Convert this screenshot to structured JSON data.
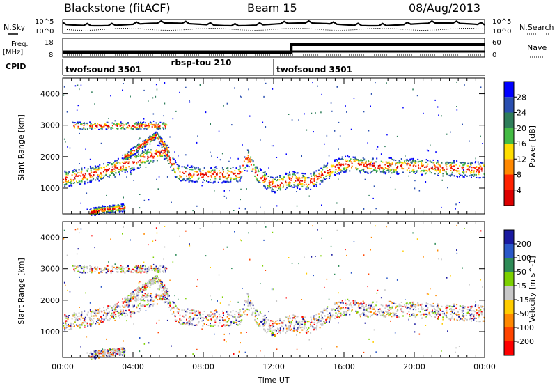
{
  "header": {
    "station": "Blackstone (fitACF)",
    "beam": "Beam 15",
    "date": "08/Aug/2013"
  },
  "panel_labels": {
    "nsky": "N.Sky",
    "nsearch": "N.Search",
    "freq_line1": "Freq.",
    "freq_line2": "[MHz]",
    "nave": "Nave",
    "cpid": "CPID"
  },
  "noise_axis": {
    "left_top": "10^5",
    "left_bottom": "10^0",
    "right_top": "10^5",
    "right_bottom": "10^0"
  },
  "freq_axis": {
    "left_top": "18",
    "left_bottom": "8",
    "right_top": "60",
    "right_bottom": "0"
  },
  "cpid_segments": [
    {
      "label": "twofsound 3501",
      "start_hour": 0,
      "end_hour": 6
    },
    {
      "label": "rbsp-tou 210",
      "start_hour": 6,
      "end_hour": 12
    },
    {
      "label": "twofsound 3501",
      "start_hour": 12,
      "end_hour": 24
    }
  ],
  "nave_step_hour": 13,
  "chart_data": [
    {
      "type": "heatmap",
      "panel": "power",
      "ylabel": "Slant Range [km]",
      "ylim": [
        180,
        4500
      ],
      "y_ticks": [
        1000,
        2000,
        3000,
        4000
      ],
      "xlim": [
        0,
        24
      ],
      "colorbar_label": "Power [dB]",
      "colorbar_ticks": [
        "4",
        "8",
        "12",
        "16",
        "20",
        "24",
        "28"
      ],
      "colorbar_colors": [
        "#0000ff",
        "#2a4fb0",
        "#2e7d5a",
        "#44bb44",
        "#ffdd00",
        "#ff8800",
        "#ff2200",
        "#dd0000"
      ],
      "scatter_bands": [
        {
          "description": "main echo band",
          "points": [
            [
              0,
              1300
            ],
            [
              2,
              1500
            ],
            [
              4,
              1850
            ],
            [
              5,
              2050
            ],
            [
              5.8,
              2200
            ],
            [
              6.5,
              1500
            ],
            [
              8,
              1450
            ],
            [
              10,
              1450
            ],
            [
              10.5,
              2000
            ],
            [
              11,
              1450
            ],
            [
              12,
              1100
            ],
            [
              13,
              1300
            ],
            [
              14,
              1200
            ],
            [
              15,
              1550
            ],
            [
              16,
              1800
            ],
            [
              17,
              1750
            ],
            [
              20,
              1700
            ],
            [
              24,
              1600
            ]
          ]
        },
        {
          "description": "upper arc",
          "points": [
            [
              3.5,
              2000
            ],
            [
              4.5,
              2400
            ],
            [
              5.3,
              2700
            ],
            [
              6,
              2200
            ]
          ]
        },
        {
          "description": "near range",
          "points": [
            [
              1.5,
              250
            ],
            [
              2.5,
              350
            ],
            [
              3.5,
              400
            ]
          ]
        },
        {
          "description": "high range streak",
          "points": [
            [
              0.5,
              3000
            ],
            [
              3,
              3000
            ],
            [
              6,
              3000
            ]
          ]
        }
      ]
    },
    {
      "type": "heatmap",
      "panel": "velocity",
      "ylabel": "Slant Range [km]",
      "xlabel": "Time UT",
      "ylim": [
        180,
        4500
      ],
      "y_ticks": [
        1000,
        2000,
        3000,
        4000
      ],
      "xlim": [
        0,
        24
      ],
      "x_ticks": [
        "00:00",
        "04:00",
        "08:00",
        "12:00",
        "16:00",
        "20:00",
        "00:00"
      ],
      "colorbar_label": "Velocity [m s^-1]",
      "colorbar_ticks": [
        "200",
        "100",
        "50",
        "15",
        "-15",
        "-50",
        "-100",
        "-200"
      ],
      "colorbar_colors": [
        "#1a1aa0",
        "#2a58c8",
        "#2e8b57",
        "#7cd000",
        "#c8c8c8",
        "#ffcc00",
        "#ff8800",
        "#ff4400",
        "#ff0000"
      ]
    }
  ]
}
